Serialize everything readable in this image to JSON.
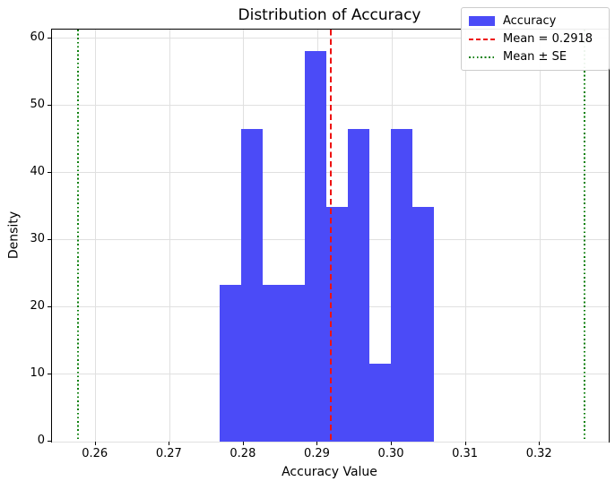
{
  "chart_data": {
    "type": "bar",
    "subtype": "histogram",
    "title": "Distribution of Accuracy",
    "xlabel": "Accuracy Value",
    "ylabel": "Density",
    "xlim": [
      0.2541,
      0.3293
    ],
    "ylim": [
      0,
      61.3
    ],
    "grid": true,
    "x_tick_values": [
      0.26,
      0.27,
      0.28,
      0.29,
      0.3,
      0.31,
      0.32
    ],
    "x_tick_labels": [
      "0.26",
      "0.27",
      "0.28",
      "0.29",
      "0.30",
      "0.31",
      "0.32"
    ],
    "y_tick_values": [
      0,
      10,
      20,
      30,
      40,
      50,
      60
    ],
    "y_tick_labels": [
      "0",
      "10",
      "20",
      "30",
      "40",
      "50",
      "60"
    ],
    "bins": {
      "start": 0.2767,
      "width": 0.0029,
      "count": 10
    },
    "densities": [
      23.3,
      46.5,
      23.3,
      23.3,
      58.1,
      34.9,
      46.5,
      11.6,
      46.5,
      34.9
    ],
    "series_label": "Accuracy",
    "mean": "0.2918",
    "mean_line": {
      "value": 0.2918,
      "label": "Mean = 0.2918",
      "color": "#ee1111",
      "style": "dashed"
    },
    "se_lines": {
      "values": [
        0.2576,
        0.326
      ],
      "label": "Mean ± SE",
      "color": "#0e800e",
      "style": "dotted"
    },
    "colors": {
      "bar": "#4b4bf7",
      "mean_line": "#ee1111",
      "se_line": "#0e800e",
      "grid": "#e0e0e0",
      "spine": "#000000"
    },
    "legend": {
      "position": "upper right",
      "entries": [
        {
          "swatch": "patch",
          "color": "#4b4bf7",
          "label": "Accuracy"
        },
        {
          "swatch": "dashed",
          "color": "#ee1111",
          "label": "Mean = 0.2918"
        },
        {
          "swatch": "dotted",
          "color": "#0e800e",
          "label": "Mean ± SE"
        }
      ]
    }
  }
}
